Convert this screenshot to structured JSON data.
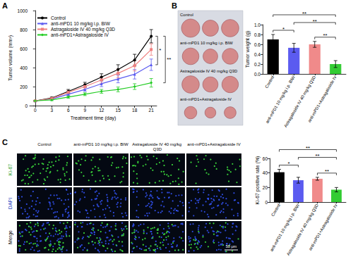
{
  "chart_data": [
    {
      "panel": "A",
      "type": "line",
      "xlabel": "Treatment time (day)",
      "ylabel": "Tumor volume (mm³)",
      "x": [
        0,
        3,
        6,
        9,
        12,
        15,
        18,
        21
      ],
      "xlim": [
        -1,
        22
      ],
      "xticks": [
        0,
        3,
        6,
        9,
        12,
        15,
        18,
        21
      ],
      "ylim": [
        0,
        1000
      ],
      "yticks": [
        0,
        200,
        400,
        600,
        800,
        1000
      ],
      "grid": false,
      "legend": "upper left",
      "series": [
        {
          "name": "Control",
          "color": "#000000",
          "marker": "circle",
          "values": [
            50,
            80,
            150,
            220,
            300,
            380,
            480,
            730
          ],
          "errors": [
            5,
            10,
            20,
            25,
            35,
            50,
            60,
            70
          ]
        },
        {
          "name": "anti-mPD1 10 mg/kg i.p. BIW",
          "color": "#5b5bf0",
          "marker": "triangle",
          "values": [
            50,
            70,
            120,
            170,
            230,
            280,
            330,
            430
          ],
          "errors": [
            5,
            8,
            15,
            20,
            30,
            40,
            50,
            60
          ]
        },
        {
          "name": "Astragaloside IV 40 mg/kg Q3D",
          "color": "#f08080",
          "marker": "square",
          "values": [
            50,
            75,
            140,
            200,
            270,
            340,
            420,
            590
          ],
          "errors": [
            5,
            10,
            20,
            25,
            35,
            45,
            55,
            60
          ]
        },
        {
          "name": "anti-mPD1+Astragaloside IV",
          "color": "#22cc22",
          "marker": "diamond",
          "values": [
            50,
            60,
            90,
            120,
            150,
            170,
            200,
            240
          ],
          "errors": [
            5,
            8,
            12,
            15,
            20,
            25,
            30,
            45
          ]
        }
      ],
      "significance": [
        {
          "between": [
            "Control",
            "anti-mPD1 10 mg/kg i.p. BIW"
          ],
          "label": "*"
        },
        {
          "between": [
            "Control",
            "anti-mPD1+Astragaloside IV"
          ],
          "label": "**"
        }
      ]
    },
    {
      "panel": "B",
      "type": "bar",
      "ylabel": "Tumor weight (g)",
      "categories": [
        "Control",
        "anti-mPD1 10 mg/kg i.p. BIW",
        "Astragaloside IV 40 mg/kg Q3D",
        "anti-mPD1+Astragaloside IV"
      ],
      "values": [
        0.7,
        0.53,
        0.6,
        0.2
      ],
      "errors": [
        0.1,
        0.09,
        0.06,
        0.07
      ],
      "colors": [
        "#000000",
        "#5b5bf0",
        "#f08a8a",
        "#33cc33"
      ],
      "ylim": [
        0,
        1.0
      ],
      "yticks": [
        {
          "value": 0,
          "label": "0.0"
        },
        0.2,
        0.4,
        0.6,
        0.8,
        {
          "value": 1.0,
          "label": "1.0"
        }
      ],
      "grid": false,
      "significance": [
        {
          "between": [
            "Control",
            "anti-mPD1 10 mg/kg i.p. BIW"
          ],
          "label": "*"
        },
        {
          "between": [
            "Astragaloside IV 40 mg/kg Q3D",
            "anti-mPD1+Astragaloside IV"
          ],
          "label": "**"
        },
        {
          "between": [
            "anti-mPD1 10 mg/kg i.p. BIW",
            "anti-mPD1+Astragaloside IV"
          ],
          "label": "**"
        },
        {
          "between": [
            "Control",
            "anti-mPD1+Astragaloside IV"
          ],
          "label": "**"
        }
      ],
      "photo_labels": [
        "Control",
        "anti-mPD1 10 mg/kg i.p. BIW",
        "Astragaloside IV 40 mg/kg Q3D",
        "anti-mPD1+Astragaloside IV"
      ]
    },
    {
      "panel": "C",
      "type": "bar",
      "ylabel": "Ki-67 positive rate (%)",
      "categories": [
        "Control",
        "anti-mPD1 10 mg/kg i.p. BIW",
        "Astragaloside IV 40 mg/kg Q3D",
        "anti-mPD1+Astragaloside IV"
      ],
      "values": [
        41,
        30,
        32,
        17
      ],
      "errors": [
        4,
        4,
        2,
        3
      ],
      "colors": [
        "#000000",
        "#5b5bf0",
        "#f08a8a",
        "#33cc33"
      ],
      "ylim": [
        0,
        60
      ],
      "yticks": [
        0,
        20,
        40,
        60
      ],
      "grid": false,
      "significance": [
        {
          "between": [
            "Control",
            "anti-mPD1 10 mg/kg i.p. BIW"
          ],
          "label": "*"
        },
        {
          "between": [
            "Astragaloside IV 40 mg/kg Q3D",
            "anti-mPD1+Astragaloside IV"
          ],
          "label": "**"
        },
        {
          "between": [
            "anti-mPD1 10 mg/kg i.p. BIW",
            "anti-mPD1+Astragaloside IV"
          ],
          "label": "**"
        },
        {
          "between": [
            "Control",
            "anti-mPD1+Astragaloside IV"
          ],
          "label": "**"
        }
      ],
      "micrograph": {
        "columns": [
          "Control",
          "anti-mPD1 10 mg/kg i.p. BIW",
          "Astragaloside IV 40 mg/kg Q3D",
          "anti-mPD1+Astragaloside IV"
        ],
        "rows": [
          "Ki-67",
          "DAPI",
          "Merge"
        ],
        "scale_bar": "50 μm"
      }
    }
  ]
}
